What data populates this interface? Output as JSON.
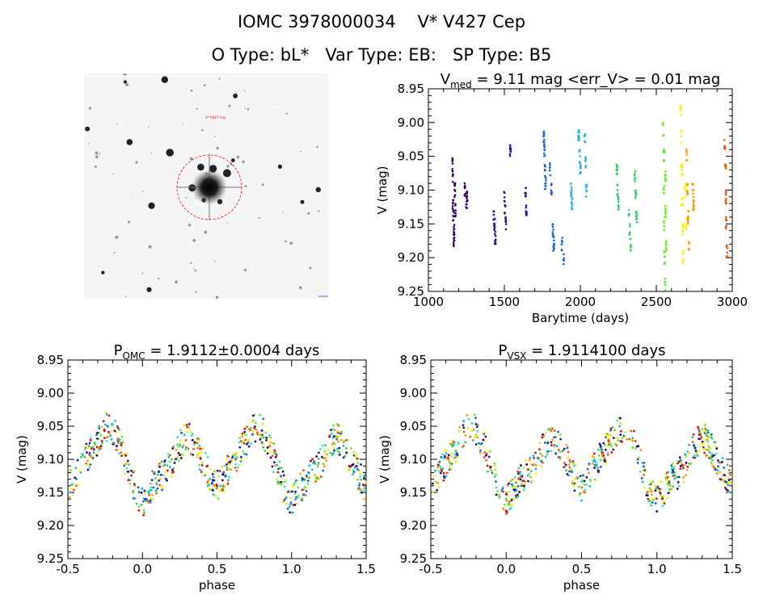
{
  "header": {
    "line1": "IOMC 3978000034    V* V427 Cep",
    "line2": "O Type: bL*   Var Type: EB:   SP Type: B5"
  },
  "colors": {
    "palette": [
      "#330066",
      "#1a1a99",
      "#1a66cc",
      "#19b3e6",
      "#33e6cc",
      "#33cc66",
      "#66ee22",
      "#ccee22",
      "#ffee00",
      "#ff9900",
      "#ff5500",
      "#dd1100"
    ],
    "circle": "#ff0000",
    "axis": "#000000"
  },
  "finder_chart": {
    "target_marker": "V* V427 Cep",
    "marker_color": "#ff0000"
  },
  "chart_data": [
    {
      "type": "scatter",
      "title": "V_med = 9.11 mag <err_V> = 0.01 mag",
      "title_parts": {
        "p1": "V",
        "sub": "med",
        "p2": " = 9.11 mag <err_V> = 0.01 mag"
      },
      "xlabel": "Barytime (days)",
      "ylabel": "V (mag)",
      "xlim": [
        1000,
        3000
      ],
      "ylim": [
        9.25,
        8.95
      ],
      "y_inverted": true,
      "xticks": [
        1000,
        1500,
        2000,
        2500,
        3000
      ],
      "xtick_labels": [
        "1000",
        "1500",
        "2000",
        "2500",
        "3000"
      ],
      "yticks": [
        8.95,
        9.0,
        9.05,
        9.1,
        9.15,
        9.2,
        9.25
      ],
      "ytick_labels": [
        "8.95",
        "9.00",
        "9.05",
        "9.10",
        "9.15",
        "9.20",
        "9.25"
      ],
      "series": [
        {
          "color_index": 0,
          "points": [
            [
              1160,
              9.06
            ],
            [
              1160,
              9.08
            ],
            [
              1162,
              9.12
            ],
            [
              1165,
              9.14
            ],
            [
              1168,
              9.16
            ],
            [
              1168,
              9.18
            ],
            [
              1175,
              9.1
            ],
            [
              1178,
              9.13
            ],
            [
              1240,
              9.1
            ],
            [
              1250,
              9.12
            ],
            [
              1255,
              9.11
            ]
          ]
        },
        {
          "color_index": 1,
          "points": [
            [
              1430,
              9.14
            ],
            [
              1435,
              9.15
            ],
            [
              1440,
              9.17
            ],
            [
              1500,
              9.11
            ],
            [
              1505,
              9.13
            ],
            [
              1510,
              9.15
            ],
            [
              1540,
              9.04
            ],
            [
              1640,
              9.1
            ],
            [
              1645,
              9.13
            ]
          ]
        },
        {
          "color_index": 2,
          "points": [
            [
              1760,
              9.02
            ],
            [
              1765,
              9.04
            ],
            [
              1768,
              9.07
            ],
            [
              1770,
              9.09
            ],
            [
              1800,
              9.07
            ],
            [
              1810,
              9.1
            ],
            [
              1820,
              9.16
            ],
            [
              1825,
              9.18
            ],
            [
              1880,
              9.18
            ],
            [
              1890,
              9.2
            ]
          ]
        },
        {
          "color_index": 3,
          "points": [
            [
              1940,
              9.1
            ],
            [
              1945,
              9.12
            ],
            [
              1990,
              9.02
            ],
            [
              1995,
              9.05
            ],
            [
              2000,
              9.07
            ],
            [
              2030,
              9.02
            ],
            [
              2035,
              9.06
            ],
            [
              2040,
              9.1
            ]
          ]
        },
        {
          "color_index": 5,
          "points": [
            [
              2240,
              9.07
            ],
            [
              2245,
              9.1
            ],
            [
              2250,
              9.12
            ],
            [
              2320,
              9.13
            ],
            [
              2325,
              9.16
            ],
            [
              2330,
              9.18
            ],
            [
              2360,
              9.08
            ],
            [
              2365,
              9.11
            ],
            [
              2370,
              9.14
            ]
          ]
        },
        {
          "color_index": 6,
          "points": [
            [
              2545,
              9.01
            ],
            [
              2550,
              9.05
            ],
            [
              2550,
              9.1
            ],
            [
              2552,
              9.15
            ],
            [
              2555,
              9.2
            ],
            [
              2558,
              9.24
            ],
            [
              2560,
              9.08
            ],
            [
              2562,
              9.13
            ],
            [
              2565,
              9.18
            ]
          ]
        },
        {
          "color_index": 8,
          "points": [
            [
              2660,
              8.98
            ],
            [
              2665,
              9.02
            ],
            [
              2668,
              9.07
            ],
            [
              2670,
              9.12
            ],
            [
              2675,
              9.16
            ],
            [
              2678,
              9.2
            ],
            [
              2690,
              9.1
            ],
            [
              2695,
              9.15
            ]
          ]
        },
        {
          "color_index": 9,
          "points": [
            [
              2700,
              9.05
            ],
            [
              2705,
              9.1
            ],
            [
              2710,
              9.14
            ],
            [
              2715,
              9.18
            ],
            [
              2740,
              9.1
            ],
            [
              2745,
              9.12
            ]
          ]
        },
        {
          "color_index": 10,
          "points": [
            [
              2950,
              9.03
            ],
            [
              2955,
              9.07
            ],
            [
              2958,
              9.11
            ],
            [
              2960,
              9.15
            ],
            [
              2965,
              9.19
            ]
          ]
        }
      ]
    },
    {
      "type": "scatter",
      "title": "P_OMC = 1.9112±0.0004 days",
      "title_parts": {
        "p1": "P",
        "sub": "OMC",
        "p2": " = 1.9112±0.0004 days"
      },
      "xlabel": "phase",
      "ylabel": "V (mag)",
      "xlim": [
        -0.5,
        1.5
      ],
      "ylim": [
        9.25,
        8.95
      ],
      "y_inverted": true,
      "xticks": [
        -0.5,
        0.0,
        0.5,
        1.0,
        1.5
      ],
      "xtick_labels": [
        "-0.5",
        "0.0",
        "0.5",
        "1.0",
        "1.5"
      ],
      "yticks": [
        8.95,
        9.0,
        9.05,
        9.1,
        9.15,
        9.2,
        9.25
      ],
      "ytick_labels": [
        "8.95",
        "9.00",
        "9.05",
        "9.10",
        "9.15",
        "9.20",
        "9.25"
      ],
      "light_curve": {
        "points": [
          [
            0.0,
            9.165
          ],
          [
            0.05,
            9.145
          ],
          [
            0.1,
            9.13
          ],
          [
            0.15,
            9.12
          ],
          [
            0.2,
            9.105
          ],
          [
            0.25,
            9.08
          ],
          [
            0.3,
            9.065
          ],
          [
            0.35,
            9.08
          ],
          [
            0.4,
            9.1
          ],
          [
            0.45,
            9.125
          ],
          [
            0.5,
            9.14
          ],
          [
            0.55,
            9.125
          ],
          [
            0.6,
            9.105
          ],
          [
            0.65,
            9.09
          ],
          [
            0.7,
            9.07
          ],
          [
            0.75,
            9.05
          ],
          [
            0.8,
            9.055
          ],
          [
            0.85,
            9.08
          ],
          [
            0.9,
            9.11
          ],
          [
            0.95,
            9.145
          ],
          [
            1.0,
            9.165
          ]
        ]
      }
    },
    {
      "type": "scatter",
      "title": "P_VSX = 1.9114100 days",
      "title_parts": {
        "p1": "P",
        "sub": "VSX",
        "p2": " = 1.9114100 days"
      },
      "xlabel": "phase",
      "ylabel": "V (mag)",
      "xlim": [
        -0.5,
        1.5
      ],
      "ylim": [
        9.25,
        8.95
      ],
      "y_inverted": true,
      "xticks": [
        -0.5,
        0.0,
        0.5,
        1.0,
        1.5
      ],
      "xtick_labels": [
        "-0.5",
        "0.0",
        "0.5",
        "1.0",
        "1.5"
      ],
      "yticks": [
        8.95,
        9.0,
        9.05,
        9.1,
        9.15,
        9.2,
        9.25
      ],
      "ytick_labels": [
        "8.95",
        "9.00",
        "9.05",
        "9.10",
        "9.15",
        "9.20",
        "9.25"
      ],
      "light_curve": {
        "points": [
          [
            0.0,
            9.165
          ],
          [
            0.05,
            9.145
          ],
          [
            0.1,
            9.13
          ],
          [
            0.15,
            9.12
          ],
          [
            0.2,
            9.105
          ],
          [
            0.25,
            9.08
          ],
          [
            0.3,
            9.065
          ],
          [
            0.35,
            9.08
          ],
          [
            0.4,
            9.1
          ],
          [
            0.45,
            9.125
          ],
          [
            0.5,
            9.14
          ],
          [
            0.55,
            9.125
          ],
          [
            0.6,
            9.105
          ],
          [
            0.65,
            9.09
          ],
          [
            0.7,
            9.07
          ],
          [
            0.75,
            9.05
          ],
          [
            0.8,
            9.055
          ],
          [
            0.85,
            9.08
          ],
          [
            0.9,
            9.11
          ],
          [
            0.95,
            9.145
          ],
          [
            1.0,
            9.165
          ]
        ]
      }
    }
  ]
}
